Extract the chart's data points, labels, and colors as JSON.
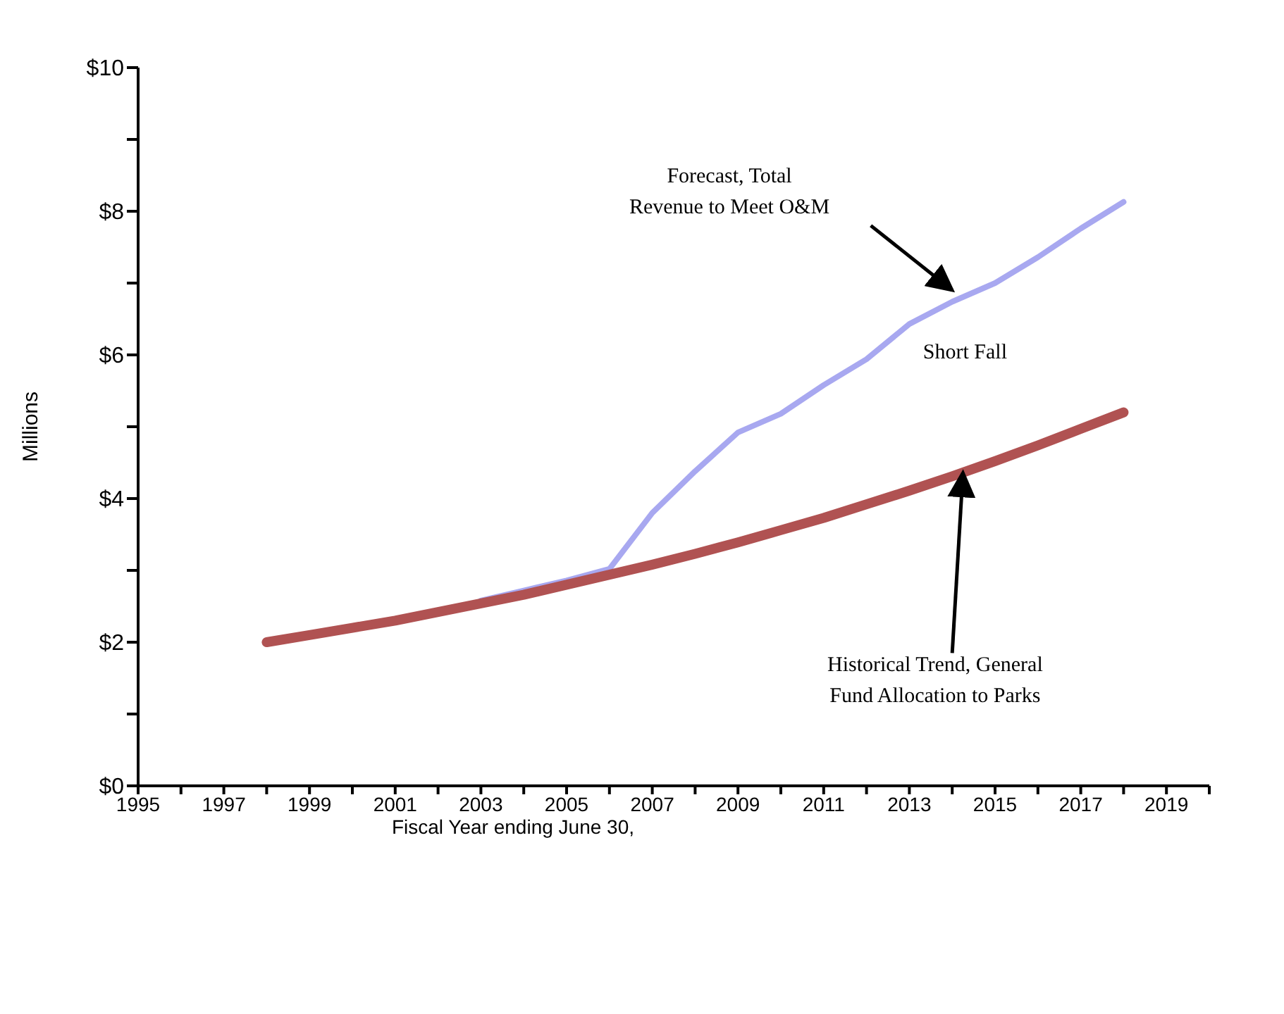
{
  "chart_data": {
    "type": "line",
    "xlabel": "Fiscal Year ending June 30,",
    "ylabel": "Millions",
    "xlim": [
      1995,
      2020
    ],
    "xticks": [
      1995,
      {
        "value": 1996,
        "label": null
      },
      1997,
      {
        "value": 1998,
        "label": null
      },
      1999,
      {
        "value": 2000,
        "label": null
      },
      2001,
      {
        "value": 2002,
        "label": null
      },
      2003,
      {
        "value": 2004,
        "label": null
      },
      2005,
      {
        "value": 2006,
        "label": null
      },
      2007,
      {
        "value": 2008,
        "label": null
      },
      2009,
      {
        "value": 2010,
        "label": null
      },
      2011,
      {
        "value": 2012,
        "label": null
      },
      2013,
      {
        "value": 2014,
        "label": null
      },
      2015,
      {
        "value": 2016,
        "label": null
      },
      2017,
      {
        "value": 2018,
        "label": null
      },
      2019,
      {
        "value": 2020,
        "label": null
      }
    ],
    "ylim": [
      0,
      10
    ],
    "yticks": [
      {
        "value": 0,
        "label": "$0"
      },
      {
        "value": 1,
        "label": null
      },
      {
        "value": 2,
        "label": "$2"
      },
      {
        "value": 3,
        "label": null
      },
      {
        "value": 4,
        "label": "$4"
      },
      {
        "value": 5,
        "label": null
      },
      {
        "value": 6,
        "label": "$6"
      },
      {
        "value": 7,
        "label": null
      },
      {
        "value": 8,
        "label": "$8"
      },
      {
        "value": 9,
        "label": null
      },
      {
        "value": 10,
        "label": "$10"
      }
    ],
    "marker": "none",
    "line_style": "solid",
    "series": [
      {
        "color": "#a8a8f0",
        "x": [
          2003,
          2004,
          2005,
          2006,
          2007,
          2008,
          2009,
          2010,
          2011,
          2012,
          2013,
          2014,
          2015,
          2016,
          2017,
          2018
        ],
        "values": [
          2.58,
          2.72,
          2.86,
          3.02,
          3.8,
          4.38,
          4.92,
          5.18,
          5.58,
          5.94,
          6.43,
          6.74,
          7.0,
          7.36,
          7.76,
          8.13
        ]
      },
      {
        "color": "#b05252",
        "x": [
          1998,
          1999,
          2000,
          2001,
          2002,
          2003,
          2004,
          2005,
          2006,
          2007,
          2008,
          2009,
          2010,
          2011,
          2012,
          2013,
          2014,
          2015,
          2016,
          2017,
          2018
        ],
        "values": [
          2.0,
          2.1,
          2.2,
          2.3,
          2.42,
          2.54,
          2.66,
          2.8,
          2.94,
          3.08,
          3.23,
          3.39,
          3.56,
          3.73,
          3.92,
          4.11,
          4.31,
          4.52,
          4.74,
          4.97,
          5.2
        ]
      }
    ],
    "annotations": [
      "Forecast, Total\nRevenue to Meet O&M",
      "Short Fall",
      {
        "text": "Historical Trend, General\nFund Allocation to Parks",
        "x": 2014.25,
        "y": 4.36
      }
    ]
  }
}
